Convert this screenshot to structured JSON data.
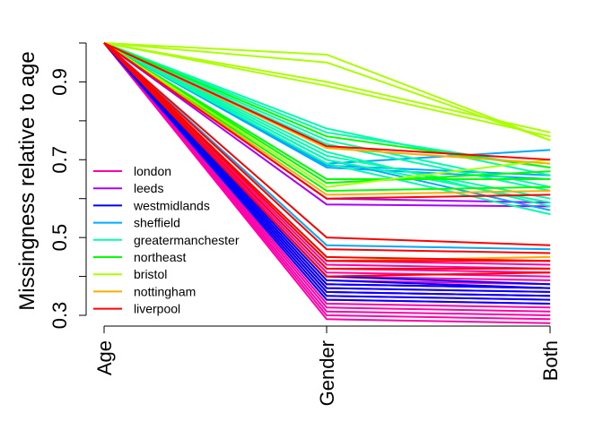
{
  "chart_data": {
    "type": "line",
    "title": "",
    "xlabel": "",
    "ylabel": "Missingness relative to age",
    "categories": [
      "Age",
      "Gender",
      "Both"
    ],
    "ylim": [
      0.28,
      1.0
    ],
    "yticks": [
      0.3,
      0.4,
      0.5,
      0.6,
      0.7,
      0.8,
      0.9,
      1.0
    ],
    "ytick_labels": [
      "0.3",
      "",
      "0.5",
      "",
      "0.7",
      "",
      "0.9",
      ""
    ],
    "grid": false,
    "legend_position": "left-center",
    "series": [
      {
        "name": "london",
        "color": "#ff00aa",
        "lines": [
          [
            1,
            0.29,
            0.28
          ],
          [
            1,
            0.3,
            0.29
          ],
          [
            1,
            0.31,
            0.3
          ],
          [
            1,
            0.32,
            0.31
          ],
          [
            1,
            0.33,
            0.32
          ],
          [
            1,
            0.34,
            0.33
          ],
          [
            1,
            0.35,
            0.34
          ],
          [
            1,
            0.36,
            0.35
          ],
          [
            1,
            0.37,
            0.36
          ],
          [
            1,
            0.38,
            0.37
          ],
          [
            1,
            0.39,
            0.38
          ],
          [
            1,
            0.4,
            0.39
          ],
          [
            1,
            0.41,
            0.4
          ],
          [
            1,
            0.42,
            0.41
          ],
          [
            1,
            0.43,
            0.42
          ],
          [
            1,
            0.44,
            0.43
          ]
        ]
      },
      {
        "name": "leeds",
        "color": "#aa00ff",
        "lines": [
          [
            1,
            0.585,
            0.58
          ],
          [
            1,
            0.6,
            0.59
          ],
          [
            1,
            0.38,
            0.37
          ],
          [
            1,
            0.36,
            0.35
          ]
        ]
      },
      {
        "name": "westmidlands",
        "color": "#0000ff",
        "lines": [
          [
            1,
            0.35,
            0.34
          ],
          [
            1,
            0.36,
            0.35
          ],
          [
            1,
            0.37,
            0.36
          ],
          [
            1,
            0.38,
            0.37
          ],
          [
            1,
            0.39,
            0.37
          ],
          [
            1,
            0.4,
            0.38
          ],
          [
            1,
            0.34,
            0.33
          ]
        ]
      },
      {
        "name": "sheffield",
        "color": "#00aaff",
        "lines": [
          [
            1,
            0.69,
            0.725
          ],
          [
            1,
            0.685,
            0.66
          ],
          [
            1,
            0.48,
            0.47
          ],
          [
            1,
            0.7,
            0.57
          ],
          [
            1,
            0.68,
            0.65
          ]
        ]
      },
      {
        "name": "greatermanchester",
        "color": "#00ffaa",
        "lines": [
          [
            1,
            0.78,
            0.66
          ],
          [
            1,
            0.75,
            0.63
          ],
          [
            1,
            0.74,
            0.62
          ],
          [
            1,
            0.72,
            0.58
          ],
          [
            1,
            0.71,
            0.6
          ],
          [
            1,
            0.77,
            0.68
          ],
          [
            1,
            0.69,
            0.56
          ],
          [
            1,
            0.7,
            0.59
          ]
        ]
      },
      {
        "name": "northeast",
        "color": "#00ff00",
        "lines": [
          [
            1,
            0.76,
            0.68
          ],
          [
            1,
            0.62,
            0.63
          ],
          [
            1,
            0.65,
            0.65
          ],
          [
            1,
            0.64,
            0.67
          ]
        ]
      },
      {
        "name": "bristol",
        "color": "#aaff00",
        "lines": [
          [
            1,
            0.97,
            0.75
          ],
          [
            1,
            0.95,
            0.75
          ],
          [
            1,
            0.9,
            0.77
          ],
          [
            1,
            0.89,
            0.76
          ],
          [
            1,
            0.63,
            0.7
          ]
        ]
      },
      {
        "name": "nottingham",
        "color": "#ffaa00",
        "lines": [
          [
            1,
            0.73,
            0.69
          ],
          [
            1,
            0.61,
            0.62
          ],
          [
            1,
            0.44,
            0.45
          ]
        ]
      },
      {
        "name": "liverpool",
        "color": "#ff0000",
        "lines": [
          [
            1,
            0.735,
            0.7
          ],
          [
            1,
            0.5,
            0.48
          ],
          [
            1,
            0.47,
            0.46
          ],
          [
            1,
            0.45,
            0.44
          ],
          [
            1,
            0.44,
            0.44
          ],
          [
            1,
            0.42,
            0.42
          ],
          [
            1,
            0.4,
            0.41
          ],
          [
            1,
            0.6,
            0.61
          ]
        ]
      }
    ]
  }
}
